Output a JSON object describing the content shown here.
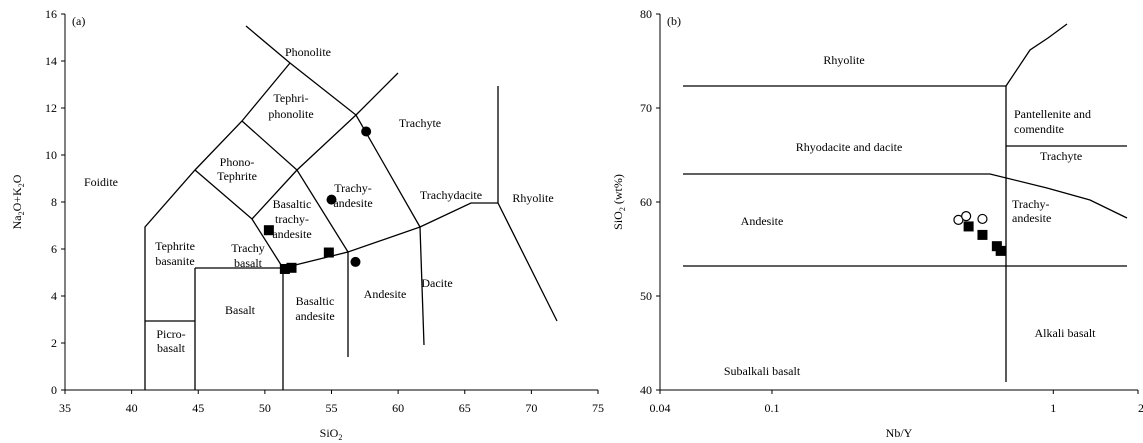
{
  "chart_data": [
    {
      "type": "scatter",
      "panel_tag": "(a)",
      "xlabel": "SiO2",
      "ylabel": "Na2O+K2O",
      "xlim": [
        35,
        75
      ],
      "ylim": [
        0,
        16
      ],
      "x_ticks": [
        35,
        40,
        45,
        50,
        55,
        60,
        65,
        70,
        75
      ],
      "y_ticks": [
        0,
        2,
        4,
        6,
        8,
        10,
        12,
        14,
        16
      ],
      "fields": [
        "Foidite",
        "Phonolite",
        "Tephri-",
        "phonolite",
        "Phono-",
        "Tephrite",
        "Trachyte",
        "Trachy-",
        "andesite",
        "Basaltic",
        "trachy-",
        "andesite",
        "Tephrite",
        "basanite",
        "Trachy",
        "basalt",
        "Trachydacite",
        "Rhyolite",
        "Picro-",
        "basalt",
        "Basalt",
        "Basaltic",
        "andesite",
        "Andesite",
        "Dacite"
      ],
      "series": [
        {
          "marker": "filled-square",
          "points": [
            [
              50.3,
              6.8
            ],
            [
              51.5,
              5.15
            ],
            [
              52.0,
              5.2
            ],
            [
              54.8,
              5.85
            ]
          ]
        },
        {
          "marker": "filled-circle",
          "points": [
            [
              57.6,
              11.0
            ],
            [
              55.0,
              8.1
            ],
            [
              56.8,
              5.45
            ]
          ]
        }
      ]
    },
    {
      "type": "scatter",
      "panel_tag": "(b)",
      "xlabel": "Nb/Y",
      "ylabel": "SiO2 (wt%)",
      "x_scale": "log",
      "xlim": [
        0.04,
        2
      ],
      "ylim": [
        40,
        80
      ],
      "x_ticks": [
        "0.04",
        "0.1",
        "1",
        "2"
      ],
      "y_ticks": [
        40,
        50,
        60,
        70,
        80
      ],
      "fields": [
        "Rhyolite",
        "Pantellenite and",
        "comendite",
        "Trachyte",
        "Rhyodacite and dacite",
        "Andesite",
        "Trachy-",
        "andesite",
        "Alkali basalt",
        "Subalkali basalt"
      ],
      "series": [
        {
          "marker": "filled-square",
          "points": [
            [
              0.5,
              57.4
            ],
            [
              0.56,
              56.5
            ],
            [
              0.63,
              55.3
            ],
            [
              0.65,
              54.8
            ]
          ]
        },
        {
          "marker": "open-circle",
          "points": [
            [
              0.46,
              58.1
            ],
            [
              0.49,
              58.5
            ],
            [
              0.56,
              58.2
            ]
          ]
        }
      ]
    }
  ]
}
